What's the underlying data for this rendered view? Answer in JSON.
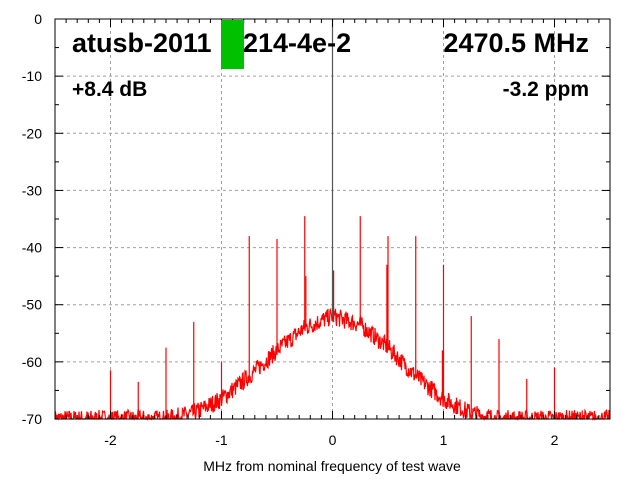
{
  "chart_data": {
    "type": "line",
    "title": "",
    "xlabel": "MHz from nominal frequency of test wave",
    "ylabel": "",
    "xlim": [
      -2.5,
      2.5
    ],
    "ylim": [
      -70,
      0
    ],
    "xticks": [
      -2,
      -1,
      0,
      1,
      2
    ],
    "yticks": [
      0,
      -10,
      -20,
      -30,
      -40,
      -50,
      -60,
      -70
    ],
    "grid": true,
    "line_color": "#ff0000",
    "center_line_color": "#555555",
    "redaction_color": "#00c000",
    "annotations": {
      "device": "atusb-2011?214-4e-2",
      "device_prefix": "atusb-2011",
      "device_suffix": "214-4e-2",
      "frequency": "2470.5 MHz",
      "level": "+8.4 dB",
      "offset": "-3.2 ppm"
    },
    "noise_envelope": {
      "x": [
        -2.5,
        -2.0,
        -1.75,
        -1.5,
        -1.25,
        -1.0,
        -0.75,
        -0.5,
        -0.25,
        0,
        0.25,
        0.5,
        0.75,
        1.0,
        1.25,
        1.5,
        1.75,
        2.0,
        2.5
      ],
      "y": [
        -70,
        -70,
        -70,
        -70,
        -69,
        -66.5,
        -62.5,
        -58,
        -54,
        -52,
        -53.5,
        -57.5,
        -62.5,
        -66.5,
        -69,
        -70,
        -70,
        -70,
        -70
      ]
    },
    "spikes": [
      {
        "x": -2.0,
        "y": -61.5
      },
      {
        "x": -1.75,
        "y": -63.5
      },
      {
        "x": -1.5,
        "y": -57.5
      },
      {
        "x": -1.25,
        "y": -53
      },
      {
        "x": -1.0,
        "y": -60
      },
      {
        "x": -0.75,
        "y": -38
      },
      {
        "x": -0.5,
        "y": -38.5
      },
      {
        "x": -0.25,
        "y": -34.5
      },
      {
        "x": -0.24,
        "y": -45
      },
      {
        "x": 0.0,
        "y": 0
      },
      {
        "x": 0.01,
        "y": -44
      },
      {
        "x": 0.25,
        "y": -34.5
      },
      {
        "x": 0.49,
        "y": -43
      },
      {
        "x": 0.5,
        "y": -38
      },
      {
        "x": 0.75,
        "y": -38
      },
      {
        "x": 0.99,
        "y": -58
      },
      {
        "x": 1.0,
        "y": -43
      },
      {
        "x": 1.25,
        "y": -52
      },
      {
        "x": 1.5,
        "y": -56
      },
      {
        "x": 1.75,
        "y": -63
      },
      {
        "x": 2.0,
        "y": -61
      },
      {
        "x": 2.25,
        "y": -68.5
      }
    ]
  }
}
